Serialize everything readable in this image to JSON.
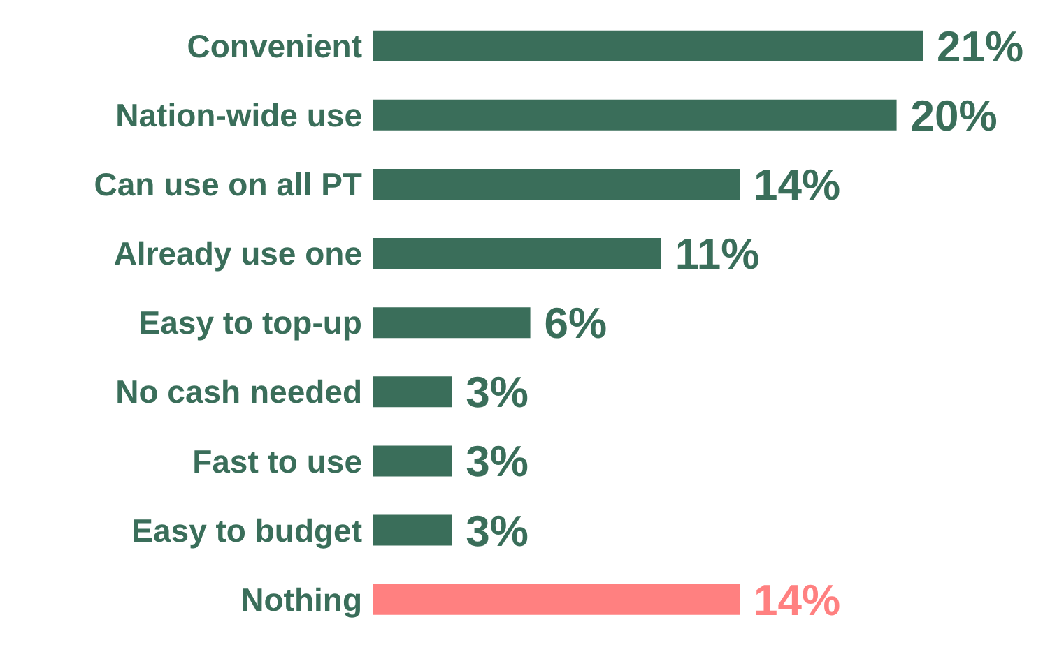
{
  "chart_data": {
    "type": "bar",
    "orientation": "horizontal",
    "data_labels": true,
    "categories": [
      "Convenient",
      "Nation-wide use",
      "Can use on all PT",
      "Already use one",
      "Easy to top-up",
      "No cash needed",
      "Fast to use",
      "Easy to budget",
      "Nothing"
    ],
    "values": [
      21,
      20,
      14,
      11,
      6,
      3,
      3,
      3,
      14
    ],
    "value_labels": [
      "21%",
      "20%",
      "14%",
      "11%",
      "6%",
      "3%",
      "3%",
      "3%",
      "14%"
    ],
    "colors": [
      "#3a6e5a",
      "#3a6e5a",
      "#3a6e5a",
      "#3a6e5a",
      "#3a6e5a",
      "#3a6e5a",
      "#3a6e5a",
      "#3a6e5a",
      "#ff8080"
    ]
  }
}
